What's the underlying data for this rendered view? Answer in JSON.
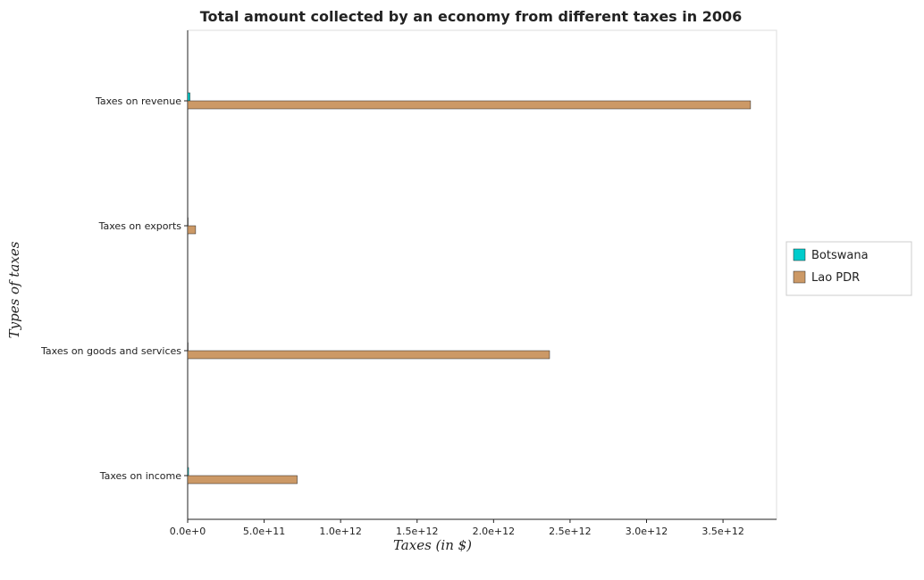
{
  "chart_data": {
    "type": "bar",
    "orientation": "horizontal",
    "title": "Total amount collected by an economy from different taxes in 2006",
    "xlabel": "Taxes (in $)",
    "ylabel": "Types of taxes",
    "categories": [
      "Taxes on revenue",
      "Taxes on exports",
      "Taxes on goods and services",
      "Taxes on income"
    ],
    "series": [
      {
        "name": "Botswana",
        "color": "#00cccc",
        "values": [
          15000000000,
          10000000,
          1500000000,
          6000000000
        ]
      },
      {
        "name": "Lao PDR",
        "color": "#cc9966",
        "values": [
          3680000000000,
          52000000000,
          2366000000000,
          716000000000
        ]
      }
    ],
    "xlim": [
      0,
      3850000000000
    ],
    "xticks": [
      {
        "value": 0,
        "label": "0.0e+0"
      },
      {
        "value": 500000000000,
        "label": "5.0e+11"
      },
      {
        "value": 1000000000000,
        "label": "1.0e+12"
      },
      {
        "value": 1500000000000,
        "label": "1.5e+12"
      },
      {
        "value": 2000000000000,
        "label": "2.0e+12"
      },
      {
        "value": 2500000000000,
        "label": "2.5e+12"
      },
      {
        "value": 3000000000000,
        "label": "3.0e+12"
      },
      {
        "value": 3500000000000,
        "label": "3.5e+12"
      }
    ],
    "legend_position": "right",
    "grid": false
  }
}
